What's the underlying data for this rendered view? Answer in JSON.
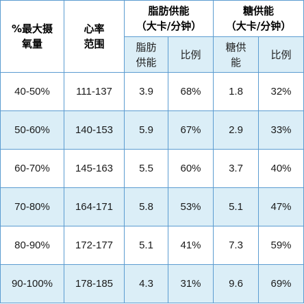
{
  "header": {
    "col1_line1": "%最大摄",
    "col1_line2": "氧量",
    "col2_line1": "心率",
    "col2_line2": "范围",
    "fat_group_line1": "脂肪供能",
    "fat_group_line2": "（大卡/分钟）",
    "sugar_group_line1": "糖供能",
    "sugar_group_line2": "（大卡/分钟）",
    "fat_sub1_line1": "脂肪",
    "fat_sub1_line2": "供能",
    "fat_sub2": "比例",
    "sugar_sub1_line1": "糖供",
    "sugar_sub1_line2": "能",
    "sugar_sub2": "比例"
  },
  "rows": [
    {
      "vo2": "40-50%",
      "hr": "111-137",
      "fat": "3.9",
      "fat_pct": "68%",
      "sugar": "1.8",
      "sugar_pct": "32%"
    },
    {
      "vo2": "50-60%",
      "hr": "140-153",
      "fat": "5.9",
      "fat_pct": "67%",
      "sugar": "2.9",
      "sugar_pct": "33%"
    },
    {
      "vo2": "60-70%",
      "hr": "145-163",
      "fat": "5.5",
      "fat_pct": "60%",
      "sugar": "3.7",
      "sugar_pct": "40%"
    },
    {
      "vo2": "70-80%",
      "hr": "164-171",
      "fat": "5.8",
      "fat_pct": "53%",
      "sugar": "5.1",
      "sugar_pct": "47%"
    },
    {
      "vo2": "80-90%",
      "hr": "172-177",
      "fat": "5.1",
      "fat_pct": "41%",
      "sugar": "7.3",
      "sugar_pct": "59%"
    },
    {
      "vo2": "90-100%",
      "hr": "178-185",
      "fat": "4.3",
      "fat_pct": "31%",
      "sugar": "9.6",
      "sugar_pct": "69%"
    }
  ],
  "colors": {
    "border": "#5a9bd0",
    "shaded_row": "#dbeef7",
    "plain_row": "#ffffff"
  }
}
